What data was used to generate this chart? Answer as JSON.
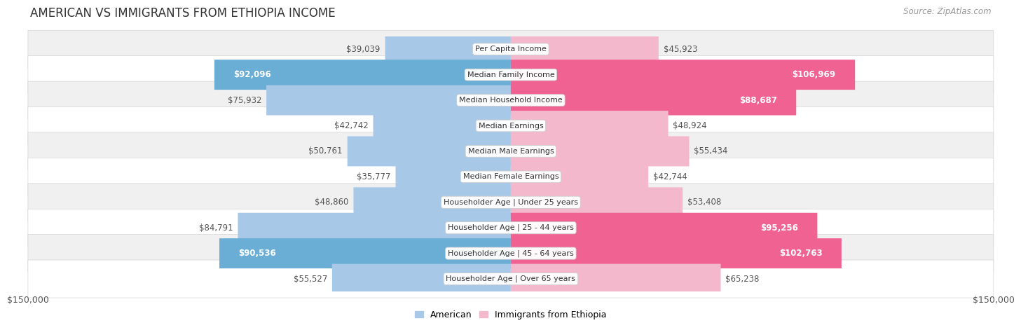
{
  "title": "AMERICAN VS IMMIGRANTS FROM ETHIOPIA INCOME",
  "source": "Source: ZipAtlas.com",
  "categories": [
    "Per Capita Income",
    "Median Family Income",
    "Median Household Income",
    "Median Earnings",
    "Median Male Earnings",
    "Median Female Earnings",
    "Householder Age | Under 25 years",
    "Householder Age | 25 - 44 years",
    "Householder Age | 45 - 64 years",
    "Householder Age | Over 65 years"
  ],
  "american_values": [
    39039,
    92096,
    75932,
    42742,
    50761,
    35777,
    48860,
    84791,
    90536,
    55527
  ],
  "ethiopia_values": [
    45923,
    106969,
    88687,
    48924,
    55434,
    42744,
    53408,
    95256,
    102763,
    65238
  ],
  "american_labels": [
    "$39,039",
    "$92,096",
    "$75,932",
    "$42,742",
    "$50,761",
    "$35,777",
    "$48,860",
    "$84,791",
    "$90,536",
    "$55,527"
  ],
  "ethiopia_labels": [
    "$45,923",
    "$106,969",
    "$88,687",
    "$48,924",
    "$55,434",
    "$42,744",
    "$53,408",
    "$95,256",
    "$102,763",
    "$65,238"
  ],
  "american_light": "#a8c8e8",
  "american_bold": "#6aaed6",
  "ethiopia_light": "#f4b8cc",
  "ethiopia_bold": "#f06292",
  "row_light": "#f0f0f0",
  "row_dark": "#e2e2e2",
  "label_dark": "#555555",
  "label_white": "#ffffff",
  "max_value": 150000,
  "title_fontsize": 12,
  "source_fontsize": 8.5,
  "bar_label_fontsize": 8.5,
  "category_fontsize": 8,
  "axis_label_fontsize": 9,
  "legend_fontsize": 9,
  "xlabel_left": "$150,000",
  "xlabel_right": "$150,000",
  "american_bold_indices": [
    1,
    8
  ],
  "ethiopia_bold_indices": [
    1,
    2,
    7,
    8
  ]
}
